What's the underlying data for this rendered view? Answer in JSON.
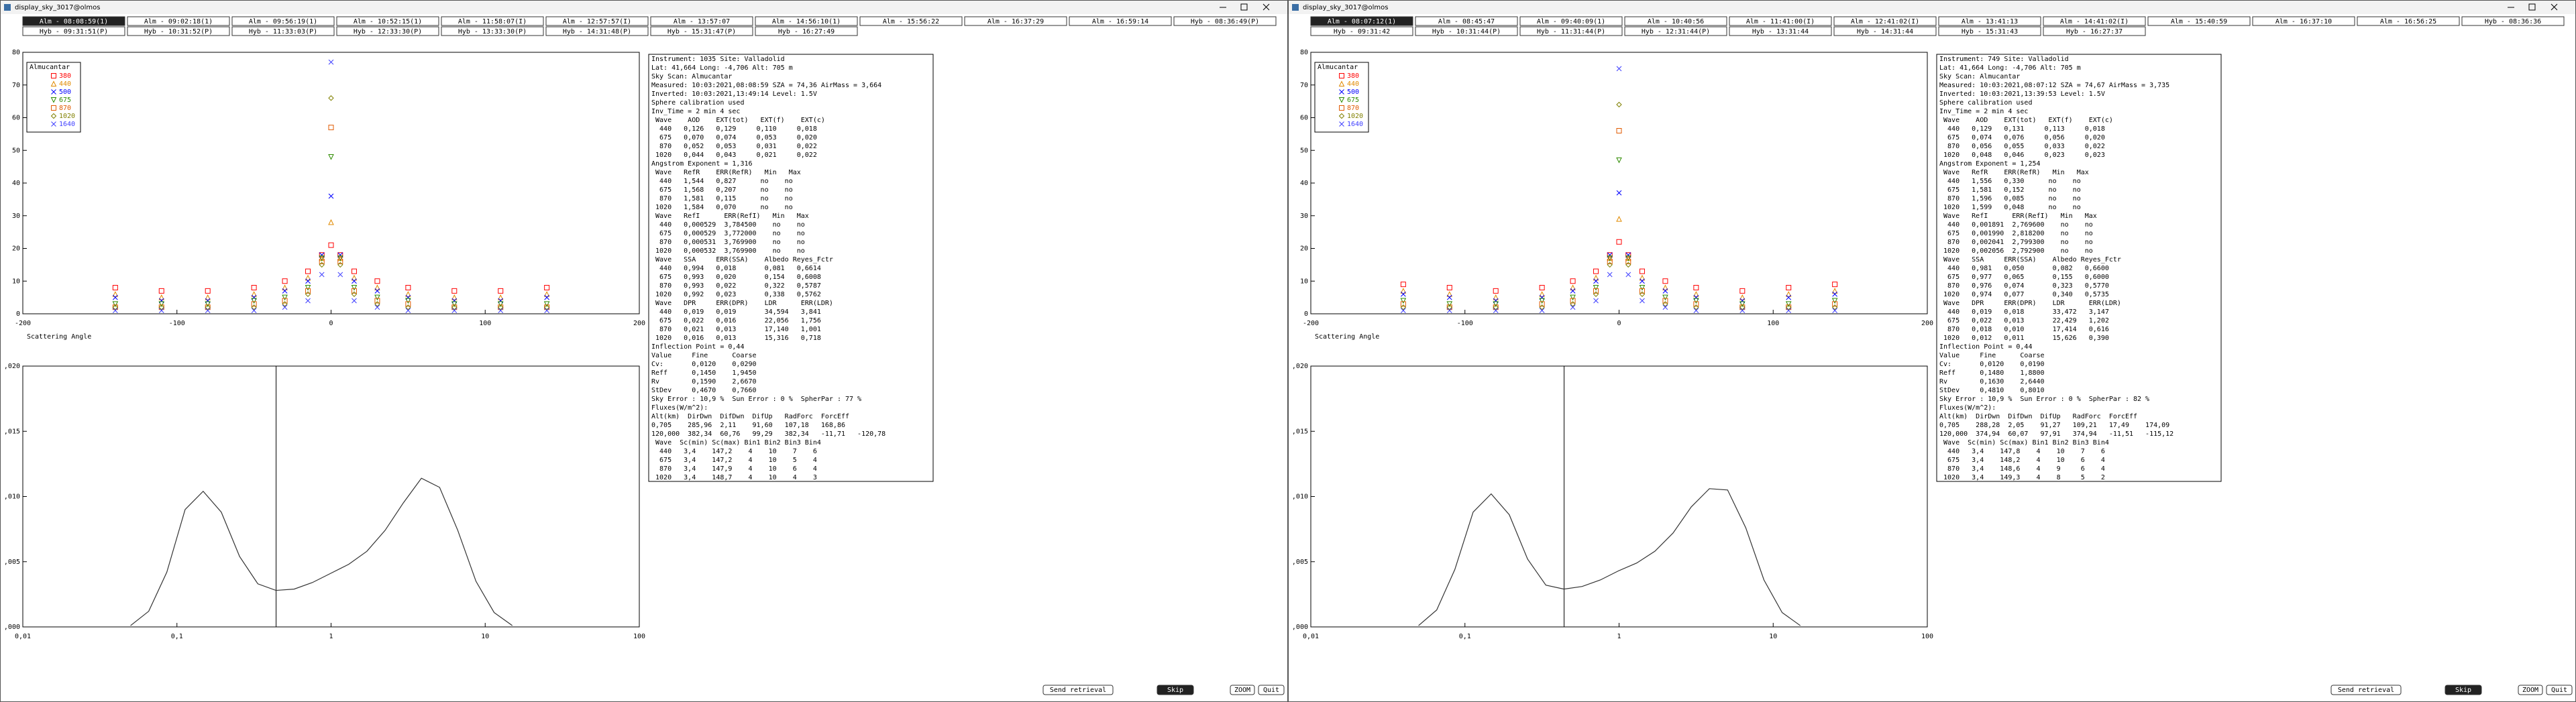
{
  "windows": [
    {
      "title": "display_sky_3017@olmos",
      "selected_tab": 0,
      "tabs": [
        "Alm - 08:08:59(1)",
        "Alm - 09:02:18(1)",
        "Alm - 09:56:19(1)",
        "Alm - 10:52:15(1)",
        "Alm - 11:58:07(I)",
        "Alm - 12:57:57(I)",
        "Alm - 13:57:07",
        "Alm - 14:56:10(1)",
        "Alm - 15:56:22",
        "Alm - 16:37:29",
        "Alm - 16:59:14",
        "Hyb - 08:36:49(P)",
        "Hyb - 09:31:51(P)",
        "Hyb - 10:31:52(P)",
        "Hyb - 11:33:03(P)",
        "Hyb - 12:33:30(P)",
        "Hyb - 13:33:30(P)",
        "Hyb - 14:31:48(P)",
        "Hyb - 15:31:47(P)",
        "Hyb - 16:27:49"
      ],
      "text_lines": [
        "Instrument: 1035 Site: Valladolid",
        "Lat: 41,664 Long: -4,706 Alt: 705 m",
        "Sky Scan: Almucantar",
        "Measured: 10:03:2021,08:08:59 SZA = 74,36 AirMass = 3,664",
        "Inverted: 10:03:2021,13:49:14 Level: 1.5V",
        "Sphere calibration used",
        "Inv_Time = 2 min 4 sec",
        " Wave    AOD    EXT(tot)   EXT(f)    EXT(c)",
        "  440   0,126   0,129     0,110     0,018",
        "  675   0,070   0,074     0,053     0,020",
        "  870   0,052   0,053     0,031     0,022",
        " 1020   0,044   0,043     0,021     0,022",
        "Angstrom Exponent = 1,316",
        " Wave   RefR    ERR(RefR)   Min   Max",
        "  440   1,544   0,827      no    no",
        "  675   1,568   0,207      no    no",
        "  870   1,581   0,115      no    no",
        " 1020   1,584   0,070      no    no",
        " Wave   RefI      ERR(RefI)   Min   Max",
        "  440   0,000529  3,784500    no    no",
        "  675   0,000529  3,772000    no    no",
        "  870   0,000531  3,769900    no    no",
        " 1020   0,000532  3,769900    no    no",
        " Wave   SSA     ERR(SSA)    Albedo Reyes_Fctr",
        "  440   0,994   0,018       0,081   0,6614",
        "  675   0,993   0,020       0,154   0,6008",
        "  870   0,993   0,022       0,322   0,5787",
        " 1020   0,992   0,023       0,338   0,5762",
        " Wave   DPR     ERR(DPR)    LDR      ERR(LDR)",
        "  440   0,019   0,019       34,594   3,841",
        "  675   0,022   0,016       22,056   1,756",
        "  870   0,021   0,013       17,140   1,001",
        " 1020   0,016   0,013       15,316   0,718",
        "Inflection Point = 0,44",
        "Value     Fine      Coarse",
        "Cv:       0,0120    0,0290",
        "Reff      0,1450    1,9450",
        "Rv        0,1590    2,6670",
        "StDev     0,4670    0,7660",
        "Sky Error : 10,9 %  Sun Error : 0 %  SpherPar : 77 %",
        "Fluxes(W/m^2):",
        "Alt(km)  DirDwn  DifDwn  DifUp   RadForc  ForcEff",
        "0,705    285,96  2,11    91,60   107,18   168,86",
        "120,000  382,34  60,76   99,29   382,34   -11,71   -120,78",
        " Wave  Sc(min) Sc(max) Bin1 Bin2 Bin3 Bin4",
        "  440   3,4    147,2    4    10    7    6",
        "  675   3,4    147,2    4    10    5    4",
        "  870   3,4    147,9    4    10    6    4",
        " 1020   3,4    148,7    4    10    4    3"
      ],
      "buttons": [
        "Send retrieval",
        "Skip",
        "ZOOM",
        "Quit"
      ],
      "chart_data": [
        {
          "type": "scatter",
          "legend_title": "Almucantar",
          "xlabel": "Scattering Angle",
          "xlim": [
            -200,
            200
          ],
          "ylim": [
            0,
            80
          ],
          "xticks": [
            -200,
            -100,
            0,
            100,
            200
          ],
          "yticks": [
            0,
            10,
            20,
            30,
            40,
            50,
            60,
            70,
            80
          ],
          "x": [
            -140,
            -110,
            -80,
            -50,
            -30,
            -15,
            -6,
            0,
            6,
            15,
            30,
            50,
            80,
            110,
            140
          ],
          "series": [
            {
              "name": "380",
              "color": "#ff0000",
              "marker": "square",
              "values": [
                8,
                7,
                7,
                8,
                10,
                13,
                18,
                21,
                18,
                13,
                10,
                8,
                7,
                7,
                8
              ]
            },
            {
              "name": "440",
              "color": "#e08a00",
              "marker": "triangle",
              "values": [
                6,
                5,
                5,
                6,
                8,
                11,
                17,
                28,
                17,
                11,
                8,
                6,
                5,
                5,
                6
              ]
            },
            {
              "name": "500",
              "color": "#0000ff",
              "marker": "x",
              "values": [
                5,
                4,
                4,
                5,
                7,
                10,
                18,
                36,
                18,
                10,
                7,
                5,
                4,
                4,
                5
              ]
            },
            {
              "name": "675",
              "color": "#2e8b00",
              "marker": "triangle-down",
              "values": [
                3,
                3,
                3,
                4,
                5,
                8,
                17,
                48,
                17,
                8,
                5,
                4,
                3,
                3,
                3
              ]
            },
            {
              "name": "870",
              "color": "#e05a00",
              "marker": "square",
              "values": [
                2,
                2,
                2,
                3,
                4,
                7,
                16,
                57,
                16,
                7,
                4,
                3,
                2,
                2,
                2
              ]
            },
            {
              "name": "1020",
              "color": "#808000",
              "marker": "diamond",
              "values": [
                2,
                2,
                2,
                2,
                3,
                6,
                15,
                66,
                15,
                6,
                3,
                2,
                2,
                2,
                2
              ]
            },
            {
              "name": "1640",
              "color": "#4040ff",
              "marker": "x",
              "values": [
                1,
                1,
                1,
                1,
                2,
                4,
                12,
                77,
                12,
                4,
                2,
                1,
                1,
                1,
                1
              ]
            }
          ]
        },
        {
          "type": "line",
          "xlog": true,
          "xlim": [
            0.01,
            100
          ],
          "ylim": [
            0,
            0.02
          ],
          "reference_x": 0.44,
          "color": "#333333",
          "xticks": [
            {
              "value": 0.01,
              "label": "0,01"
            },
            {
              "value": 0.1,
              "label": "0,1"
            },
            1,
            10,
            100
          ],
          "yticks": [
            {
              "value": 0,
              "label": ",000"
            },
            {
              "value": 0.005,
              "label": ",005"
            },
            {
              "value": 0.01,
              "label": ",010"
            },
            {
              "value": 0.015,
              "label": ",015"
            },
            {
              "value": 0.02,
              "label": ",020"
            }
          ],
          "x": [
            0.05,
            0.0656,
            0.086,
            0.113,
            0.148,
            0.194,
            0.255,
            0.335,
            0.439,
            0.576,
            0.756,
            0.992,
            1.302,
            1.708,
            2.241,
            2.94,
            3.857,
            5.061,
            6.641,
            8.713,
            11.432,
            15
          ],
          "values": [
            0.0001,
            0.0012,
            0.0042,
            0.009,
            0.0104,
            0.0088,
            0.0054,
            0.0033,
            0.0028,
            0.0029,
            0.0034,
            0.0041,
            0.0048,
            0.0058,
            0.0074,
            0.0095,
            0.0114,
            0.0107,
            0.0074,
            0.0035,
            0.0011,
            0.0001
          ]
        }
      ]
    },
    {
      "title": "display_sky_3017@olmos",
      "selected_tab": 0,
      "tabs": [
        "Alm - 08:07:12(1)",
        "Alm - 08:45:47",
        "Alm - 09:40:09(1)",
        "Alm - 10:40:56",
        "Alm - 11:41:00(I)",
        "Alm - 12:41:02(I)",
        "Alm - 13:41:13",
        "Alm - 14:41:02(I)",
        "Alm - 15:40:59",
        "Alm - 16:37:10",
        "Alm - 16:56:25",
        "Hyb - 08:36:36",
        "Hyb - 09:31:42",
        "Hyb - 10:31:44(P)",
        "Hyb - 11:31:44(P)",
        "Hyb - 12:31:44(P)",
        "Hyb - 13:31:44",
        "Hyb - 14:31:44",
        "Hyb - 15:31:43",
        "Hyb - 16:27:37"
      ],
      "text_lines": [
        "Instrument: 749 Site: Valladolid",
        "Lat: 41,664 Long: -4,706 Alt: 705 m",
        "Sky Scan: Almucantar",
        "Measured: 10:03:2021,08:07:12 SZA = 74,67 AirMass = 3,735",
        "Inverted: 10:03:2021,13:39:53 Level: 1.5V",
        "Sphere calibration used",
        "Inv_Time = 2 min 4 sec",
        " Wave    AOD    EXT(tot)   EXT(f)    EXT(c)",
        "  440   0,129   0,131     0,113     0,018",
        "  675   0,074   0,076     0,056     0,020",
        "  870   0,056   0,055     0,033     0,022",
        " 1020   0,048   0,046     0,023     0,023",
        "Angstrom Exponent = 1,254",
        " Wave   RefR    ERR(RefR)   Min   Max",
        "  440   1,556   0,330      no    no",
        "  675   1,581   0,152      no    no",
        "  870   1,596   0,085      no    no",
        " 1020   1,599   0,048      no    no",
        " Wave   RefI      ERR(RefI)   Min   Max",
        "  440   0,001891  2,769600    no    no",
        "  675   0,001990  2,818200    no    no",
        "  870   0,002041  2,799300    no    no",
        " 1020   0,002056  2,792900    no    no",
        " Wave   SSA     ERR(SSA)    Albedo Reyes_Fctr",
        "  440   0,981   0,050       0,082   0,6600",
        "  675   0,977   0,065       0,155   0,6000",
        "  870   0,976   0,074       0,323   0,5770",
        " 1020   0,974   0,077       0,340   0,5735",
        " Wave   DPR     ERR(DPR)    LDR      ERR(LDR)",
        "  440   0,019   0,018       33,472   3,147",
        "  675   0,022   0,013       22,429   1,202",
        "  870   0,018   0,010       17,414   0,616",
        " 1020   0,012   0,011       15,626   0,390",
        "Inflection Point = 0,44",
        "Value     Fine      Coarse",
        "Cv:       0,0120    0,0190",
        "Reff      0,1480    1,8800",
        "Rv        0,1630    2,6440",
        "StDev     0,4810    0,8010",
        "Sky Error : 10,9 %  Sun Error : 0 %  SpherPar : 82 %",
        "Fluxes(W/m^2):",
        "Alt(km)  DirDwn  DifDwn  DifUp   RadForc  ForcEff",
        "0,705    288,28  2,05    91,27   109,21   17,49    174,09",
        "120,000  374,94  60,07   97,91   374,94   -11,51   -115,12",
        " Wave  Sc(min) Sc(max) Bin1 Bin2 Bin3 Bin4",
        "  440   3,4    147,8    4    10    7    6",
        "  675   3,4    148,2    4    10    6    4",
        "  870   3,4    148,6    4    9     6    4",
        " 1020   3,4    149,3    4    8     5    2"
      ],
      "buttons": [
        "Send retrieval",
        "Skip",
        "ZOOM",
        "Quit"
      ],
      "chart_data": [
        {
          "type": "scatter",
          "legend_title": "Almucantar",
          "xlabel": "Scattering Angle",
          "xlim": [
            -200,
            200
          ],
          "ylim": [
            0,
            80
          ],
          "xticks": [
            -200,
            -100,
            0,
            100,
            200
          ],
          "yticks": [
            0,
            10,
            20,
            30,
            40,
            50,
            60,
            70,
            80
          ],
          "x": [
            -140,
            -110,
            -80,
            -50,
            -30,
            -15,
            -6,
            0,
            6,
            15,
            30,
            50,
            80,
            110,
            140
          ],
          "series": [
            {
              "name": "380",
              "color": "#ff0000",
              "marker": "square",
              "values": [
                9,
                8,
                7,
                8,
                10,
                13,
                18,
                22,
                18,
                13,
                10,
                8,
                7,
                8,
                9
              ]
            },
            {
              "name": "440",
              "color": "#e08a00",
              "marker": "triangle",
              "values": [
                7,
                6,
                5,
                6,
                8,
                11,
                17,
                29,
                17,
                11,
                8,
                6,
                5,
                6,
                7
              ]
            },
            {
              "name": "500",
              "color": "#0000ff",
              "marker": "x",
              "values": [
                6,
                5,
                4,
                5,
                7,
                10,
                18,
                37,
                18,
                10,
                7,
                5,
                4,
                5,
                6
              ]
            },
            {
              "name": "675",
              "color": "#2e8b00",
              "marker": "triangle-down",
              "values": [
                4,
                3,
                3,
                4,
                5,
                8,
                17,
                47,
                17,
                8,
                5,
                4,
                3,
                3,
                4
              ]
            },
            {
              "name": "870",
              "color": "#e05a00",
              "marker": "square",
              "values": [
                3,
                2,
                2,
                3,
                4,
                7,
                16,
                56,
                16,
                7,
                4,
                3,
                2,
                2,
                3
              ]
            },
            {
              "name": "1020",
              "color": "#808000",
              "marker": "diamond",
              "values": [
                2,
                2,
                2,
                2,
                3,
                6,
                15,
                64,
                15,
                6,
                3,
                2,
                2,
                2,
                2
              ]
            },
            {
              "name": "1640",
              "color": "#4040ff",
              "marker": "x",
              "values": [
                1,
                1,
                1,
                1,
                2,
                4,
                12,
                75,
                12,
                4,
                2,
                1,
                1,
                1,
                1
              ]
            }
          ]
        },
        {
          "type": "line",
          "xlog": true,
          "xlim": [
            0.01,
            100
          ],
          "ylim": [
            0,
            0.02
          ],
          "reference_x": 0.44,
          "color": "#333333",
          "xticks": [
            {
              "value": 0.01,
              "label": "0,01"
            },
            {
              "value": 0.1,
              "label": "0,1"
            },
            1,
            10,
            100
          ],
          "yticks": [
            {
              "value": 0,
              "label": ",000"
            },
            {
              "value": 0.005,
              "label": ",005"
            },
            {
              "value": 0.01,
              "label": ",010"
            },
            {
              "value": 0.015,
              "label": ",015"
            },
            {
              "value": 0.02,
              "label": ",020"
            }
          ],
          "x": [
            0.05,
            0.0656,
            0.086,
            0.113,
            0.148,
            0.194,
            0.255,
            0.335,
            0.439,
            0.576,
            0.756,
            0.992,
            1.302,
            1.708,
            2.241,
            2.94,
            3.857,
            5.061,
            6.641,
            8.713,
            11.432,
            15
          ],
          "values": [
            0.0001,
            0.0013,
            0.0044,
            0.0088,
            0.0102,
            0.0086,
            0.0052,
            0.0032,
            0.0029,
            0.0031,
            0.0036,
            0.0043,
            0.0049,
            0.0058,
            0.0072,
            0.0092,
            0.0106,
            0.0105,
            0.0076,
            0.0036,
            0.0011,
            0.0001
          ]
        }
      ]
    }
  ]
}
